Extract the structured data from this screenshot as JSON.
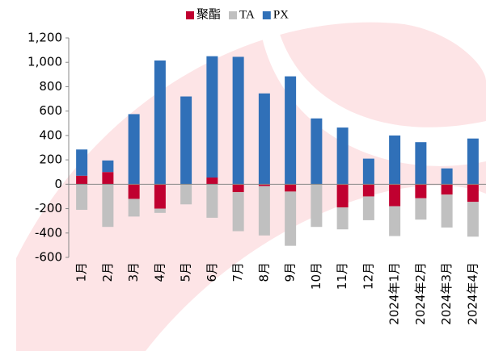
{
  "chart_data": {
    "type": "bar",
    "stacked": true,
    "categories": [
      "1月",
      "2月",
      "3月",
      "4月",
      "5月",
      "6月",
      "7月",
      "8月",
      "9月",
      "10月",
      "11月",
      "12月",
      "2024年1月",
      "2024年2月",
      "2024年3月",
      "2024年4月"
    ],
    "series": [
      {
        "name": "聚酯",
        "color": "#c00030",
        "values": [
          70,
          100,
          -120,
          -200,
          0,
          55,
          -65,
          -15,
          -60,
          0,
          -190,
          -100,
          -180,
          -115,
          -85,
          -145
        ]
      },
      {
        "name": "TA",
        "color": "#c0c0c0",
        "values": [
          -210,
          -350,
          -145,
          -35,
          -165,
          -275,
          -320,
          -405,
          -445,
          -350,
          -180,
          -195,
          -245,
          -175,
          -270,
          -285
        ]
      },
      {
        "name": "PX",
        "color": "#3070b8",
        "values": [
          215,
          95,
          575,
          1015,
          720,
          995,
          1045,
          745,
          885,
          540,
          465,
          210,
          400,
          345,
          130,
          375
        ]
      }
    ],
    "ylim": [
      -600,
      1200
    ],
    "yticks": [
      -600,
      -400,
      -200,
      0,
      200,
      400,
      600,
      800,
      {
        "value": 1000,
        "label": "1,000"
      },
      {
        "value": 1200,
        "label": "1,200"
      }
    ],
    "legend": "top"
  }
}
